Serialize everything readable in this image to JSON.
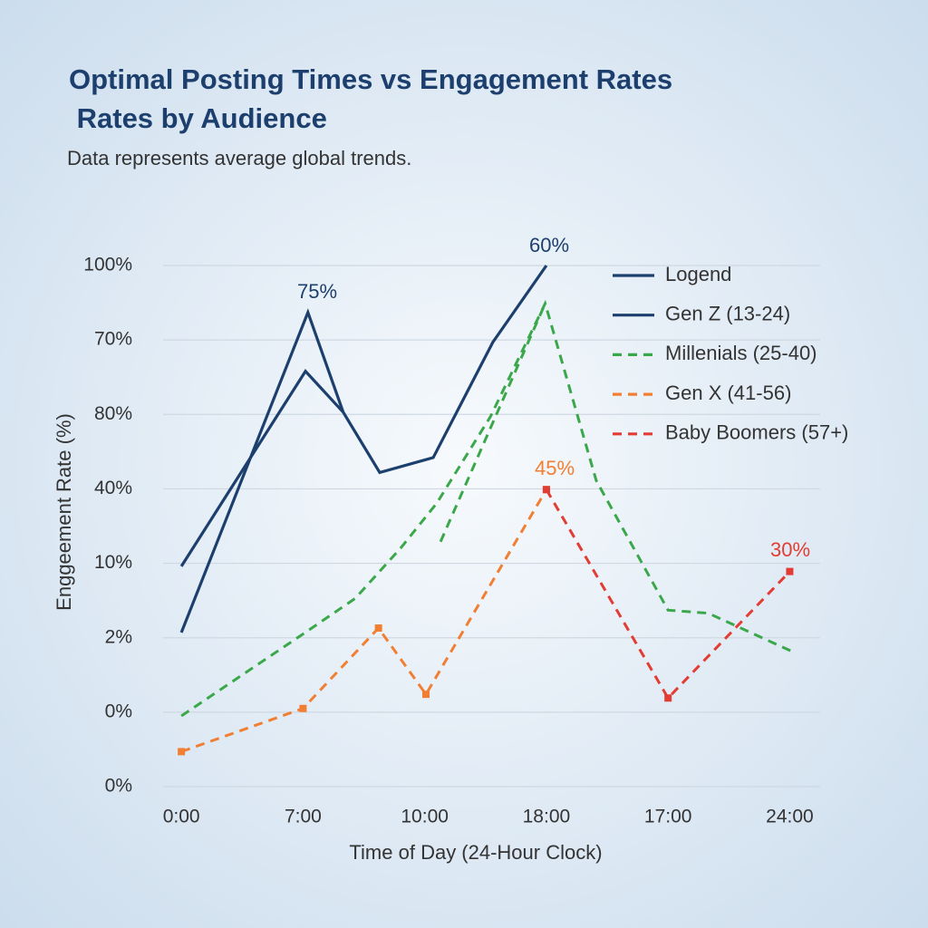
{
  "chart_data": {
    "type": "line",
    "title": [
      "Optimal Posting Times vs Engagement Rates",
      " Rates by Audience"
    ],
    "subtitle": "Data represents average global trends.",
    "ylabel": "Enggeement Rate (%)",
    "xlabel": "Time of Day (24-Hour Clock)",
    "xlim": [
      -0.15,
      5.25
    ],
    "xticks": [
      {
        "value": 0,
        "label": "0:00"
      },
      {
        "value": 1,
        "label": "7:00"
      },
      {
        "value": 2,
        "label": "10:00"
      },
      {
        "value": 3,
        "label": "18:00"
      },
      {
        "value": 4,
        "label": "17:00"
      },
      {
        "value": 5,
        "label": "24:00"
      }
    ],
    "ylim": [
      0,
      7
    ],
    "yticks": [
      {
        "value": 7,
        "label": "100%"
      },
      {
        "value": 6,
        "label": "70%"
      },
      {
        "value": 5,
        "label": "80%"
      },
      {
        "value": 4,
        "label": "40%"
      },
      {
        "value": 3,
        "label": "10%"
      },
      {
        "value": 2,
        "label": "2%"
      },
      {
        "value": 1,
        "label": "0%"
      },
      {
        "value": 0,
        "label": "0%"
      }
    ],
    "grid": true,
    "legend": "upper right",
    "series": [
      {
        "name": "Logend",
        "color": "#1c3f6e",
        "dashed": false,
        "markers": false,
        "x": [
          0,
          1.02,
          1.33,
          1.63,
          2.07,
          2.56,
          3
        ],
        "values": [
          2.96,
          5.58,
          5.03,
          4.22,
          4.42,
          5.97,
          7
        ]
      },
      {
        "name": "Gen Z (13-24)",
        "color": "#1c3f6e",
        "dashed": false,
        "markers": false,
        "x": [
          0,
          1.04,
          1.33
        ],
        "values": [
          2.07,
          6.37,
          5.03
        ]
      },
      {
        "name": "Millenials (25-40)",
        "color": "#3aa84a",
        "dashed": true,
        "markers": false,
        "x": [
          0,
          1,
          1.43,
          1.8,
          2.1,
          2.54,
          2.99,
          3.41,
          4,
          4.33,
          5.04,
          null,
          2.13,
          2.99
        ],
        "values": [
          0.95,
          2.05,
          2.53,
          3.2,
          3.81,
          4.97,
          6.49,
          4.11,
          2.37,
          2.33,
          1.8,
          null,
          3.29,
          6.49
        ]
      },
      {
        "name": "Gen X (41-56)",
        "color": "#f07f34",
        "dashed": true,
        "markers": true,
        "x": [
          0,
          1,
          1.62,
          2.01,
          3
        ],
        "values": [
          0.47,
          1.05,
          2.13,
          1.24,
          3.99
        ]
      },
      {
        "name": "Baby Boomers (57+)",
        "color": "#e23c33",
        "dashed": true,
        "markers": true,
        "x": [
          3,
          4,
          5
        ],
        "values": [
          3.99,
          1.19,
          2.89
        ]
      }
    ],
    "annotations": [
      {
        "text": "75%",
        "color": "#1c3f6e"
      },
      {
        "text": "60%",
        "color": "#1c3f6e"
      },
      {
        "text": "45%",
        "color": "#f07f34"
      },
      {
        "text": "30%",
        "color": "#e23c33"
      }
    ]
  }
}
